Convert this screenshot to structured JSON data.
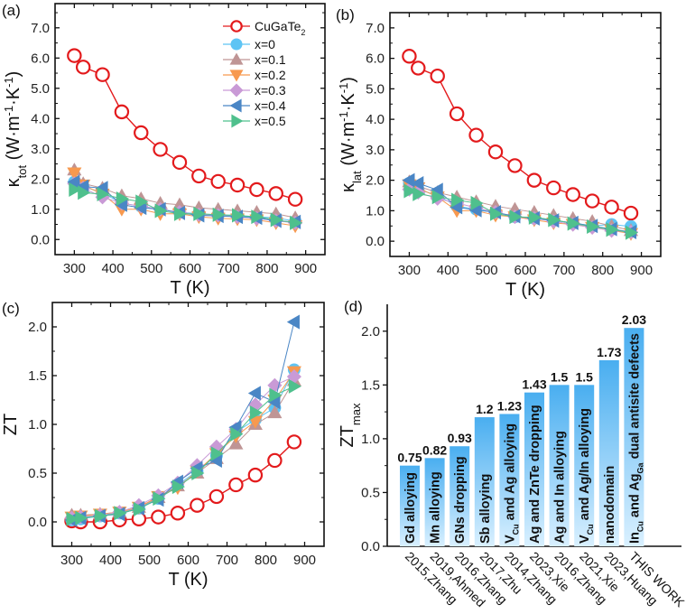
{
  "panel_labels": [
    "(a)",
    "(b)",
    "(c)",
    "(d)"
  ],
  "chart_data": [
    {
      "type": "line",
      "panel": "(a)",
      "xlabel": "T (K)",
      "ylabel": [
        {
          "t": "κ"
        },
        {
          "t": "tot",
          "sub": true
        },
        {
          "t": " (W·m"
        },
        {
          "t": "-1",
          "sup": true
        },
        {
          "t": "·K"
        },
        {
          "t": "-1",
          "sup": true
        },
        {
          "t": ")"
        }
      ],
      "xlim": [
        250,
        950
      ],
      "ylim": [
        -0.5,
        7.8
      ],
      "xticks": [
        300,
        400,
        500,
        600,
        700,
        800,
        900
      ],
      "yticks": [
        "0.0",
        "1.0",
        "2.0",
        "3.0",
        "4.0",
        "5.0",
        "6.0",
        "7.0"
      ],
      "legend_placement": "top-right",
      "x": [
        300,
        323,
        373,
        423,
        473,
        523,
        573,
        623,
        673,
        723,
        773,
        823,
        873
      ],
      "series": [
        {
          "name": [
            {
              "t": "CuGaTe"
            },
            {
              "t": "2",
              "sub": true
            }
          ],
          "marker": "circle-open",
          "color": "#e31a1c",
          "values": [
            6.08,
            5.7,
            5.45,
            4.22,
            3.53,
            2.98,
            2.55,
            2.1,
            1.92,
            1.8,
            1.65,
            1.52,
            1.33
          ]
        },
        {
          "name": "x=0",
          "marker": "circle",
          "color": "#5ec4f4",
          "values": [
            1.9,
            1.75,
            1.55,
            1.2,
            1.1,
            1.0,
            0.9,
            0.85,
            0.8,
            0.78,
            0.75,
            0.72,
            0.6
          ]
        },
        {
          "name": "x=0.1",
          "marker": "triangle-up",
          "color": "#bf9595",
          "values": [
            2.3,
            1.85,
            1.7,
            1.45,
            1.35,
            1.2,
            1.15,
            1.05,
            1.0,
            0.95,
            0.9,
            0.85,
            0.72
          ]
        },
        {
          "name": "x=0.2",
          "marker": "triangle-down",
          "color": "#f7994f",
          "values": [
            2.2,
            1.8,
            1.5,
            1.0,
            1.0,
            0.85,
            0.85,
            0.75,
            0.7,
            0.68,
            0.65,
            0.55,
            0.45
          ]
        },
        {
          "name": "x=0.3",
          "marker": "diamond",
          "color": "#c99ad6",
          "values": [
            1.85,
            1.7,
            1.4,
            1.2,
            1.1,
            1.0,
            0.9,
            0.82,
            0.8,
            0.75,
            0.7,
            0.62,
            0.55
          ]
        },
        {
          "name": "x=0.4",
          "marker": "triangle-left",
          "color": "#4a86c5",
          "values": [
            1.9,
            1.75,
            1.7,
            1.15,
            1.05,
            1.0,
            0.88,
            0.8,
            0.78,
            0.75,
            0.72,
            0.62,
            0.58
          ]
        },
        {
          "name": "x=0.5",
          "marker": "triangle-right",
          "color": "#4fc08d",
          "values": [
            1.65,
            1.55,
            1.5,
            1.35,
            1.25,
            0.95,
            0.85,
            0.85,
            0.82,
            0.8,
            0.75,
            0.65,
            0.55
          ]
        }
      ]
    },
    {
      "type": "line",
      "panel": "(b)",
      "xlabel": "T (K)",
      "ylabel": [
        {
          "t": "κ"
        },
        {
          "t": "lat",
          "sub": true
        },
        {
          "t": " (W·m"
        },
        {
          "t": "-1",
          "sup": true
        },
        {
          "t": "·K"
        },
        {
          "t": "-1",
          "sup": true
        },
        {
          "t": ")"
        }
      ],
      "xlim": [
        250,
        950
      ],
      "ylim": [
        -0.5,
        7.5
      ],
      "xticks": [
        300,
        400,
        500,
        600,
        700,
        800,
        900
      ],
      "yticks": [
        "0.0",
        "1.0",
        "2.0",
        "3.0",
        "4.0",
        "5.0",
        "6.0",
        "7.0"
      ],
      "x": [
        300,
        323,
        373,
        423,
        473,
        523,
        573,
        623,
        673,
        723,
        773,
        823,
        873
      ],
      "series": [
        {
          "marker": "circle-open",
          "color": "#e31a1c",
          "values": [
            6.07,
            5.68,
            5.42,
            4.18,
            3.48,
            2.93,
            2.48,
            2.0,
            1.75,
            1.53,
            1.32,
            1.12,
            0.92
          ]
        },
        {
          "marker": "circle",
          "color": "#5ec4f4",
          "values": [
            1.9,
            1.7,
            1.5,
            1.15,
            1.05,
            0.95,
            0.8,
            0.75,
            0.68,
            0.6,
            0.5,
            0.55,
            0.48
          ]
        },
        {
          "marker": "triangle-up",
          "color": "#bf9595",
          "values": [
            1.95,
            1.8,
            1.6,
            1.45,
            1.3,
            1.15,
            1.05,
            0.95,
            0.85,
            0.75,
            0.65,
            0.5,
            0.35
          ]
        },
        {
          "marker": "triangle-down",
          "color": "#f7994f",
          "values": [
            1.85,
            1.75,
            1.45,
            1.0,
            1.0,
            0.85,
            0.8,
            0.7,
            0.6,
            0.55,
            0.45,
            0.35,
            0.25
          ]
        },
        {
          "marker": "diamond",
          "color": "#c99ad6",
          "values": [
            1.7,
            1.6,
            1.4,
            1.25,
            1.1,
            0.95,
            0.8,
            0.75,
            0.65,
            0.55,
            0.45,
            0.35,
            0.3
          ]
        },
        {
          "marker": "triangle-left",
          "color": "#4a86c5",
          "values": [
            2.0,
            1.9,
            1.68,
            1.12,
            1.02,
            0.95,
            0.82,
            0.75,
            0.68,
            0.6,
            0.5,
            0.4,
            0.3
          ]
        },
        {
          "marker": "triangle-right",
          "color": "#4fc08d",
          "values": [
            1.65,
            1.55,
            1.45,
            1.35,
            1.25,
            0.9,
            0.8,
            0.78,
            0.7,
            0.58,
            0.48,
            0.38,
            0.28
          ]
        }
      ]
    },
    {
      "type": "line",
      "panel": "(c)",
      "xlabel": "T (K)",
      "ylabel": [
        {
          "t": "ZT"
        }
      ],
      "xlim": [
        250,
        950
      ],
      "ylim": [
        -0.25,
        2.25
      ],
      "xticks": [
        300,
        400,
        500,
        600,
        700,
        800,
        900
      ],
      "yticks": [
        "0.0",
        "0.5",
        "1.0",
        "1.5",
        "2.0"
      ],
      "x": [
        300,
        323,
        373,
        423,
        473,
        523,
        573,
        623,
        673,
        723,
        773,
        823,
        873
      ],
      "series": [
        {
          "marker": "circle-open",
          "color": "#e31a1c",
          "values": [
            0.01,
            0.0,
            0.0,
            0.02,
            0.03,
            0.05,
            0.09,
            0.17,
            0.26,
            0.38,
            0.48,
            0.63,
            0.82
          ]
        },
        {
          "marker": "circle",
          "color": "#5ec4f4",
          "values": [
            0.02,
            0.03,
            0.06,
            0.09,
            0.14,
            0.24,
            0.38,
            0.52,
            0.68,
            0.92,
            1.05,
            1.17,
            1.56
          ]
        },
        {
          "marker": "triangle-up",
          "color": "#bf9595",
          "values": [
            0.07,
            0.07,
            0.08,
            0.1,
            0.15,
            0.25,
            0.37,
            0.5,
            0.65,
            0.8,
            1.0,
            1.12,
            1.45
          ]
        },
        {
          "marker": "triangle-down",
          "color": "#f7994f",
          "values": [
            0.05,
            0.06,
            0.08,
            0.1,
            0.15,
            0.26,
            0.35,
            0.52,
            0.7,
            0.88,
            1.03,
            1.25,
            1.54
          ]
        },
        {
          "marker": "diamond",
          "color": "#c99ad6",
          "values": [
            0.04,
            0.05,
            0.07,
            0.1,
            0.17,
            0.27,
            0.4,
            0.58,
            0.77,
            0.95,
            1.2,
            1.4,
            1.49
          ]
        },
        {
          "marker": "triangle-left",
          "color": "#4a86c5",
          "values": [
            0.02,
            0.04,
            0.06,
            0.08,
            0.14,
            0.23,
            0.41,
            0.55,
            0.63,
            0.97,
            1.32,
            1.23,
            2.05
          ]
        },
        {
          "marker": "triangle-right",
          "color": "#4fc08d",
          "values": [
            0.03,
            0.04,
            0.06,
            0.09,
            0.13,
            0.24,
            0.36,
            0.5,
            0.7,
            0.9,
            1.12,
            1.3,
            1.39
          ]
        }
      ]
    },
    {
      "type": "bar",
      "panel": "(d)",
      "ylabel": [
        {
          "t": "ZT"
        },
        {
          "t": "max",
          "sub": true
        }
      ],
      "ylim": [
        0,
        2.25
      ],
      "yticks": [
        "0.0",
        "0.5",
        "1.0",
        "1.5",
        "2.0"
      ],
      "bar_color_top": "#49aef0",
      "bar_color_bottom": "#d9f0ff",
      "categories": [
        "2015,Zhang",
        "2019,Ahmed",
        "2016,Zhang",
        "2017,Zhu",
        "2014,Zhang",
        "2023,Xie",
        "2016,Zhang",
        "2021,Xie",
        "2023,Huang",
        "THIS WORK"
      ],
      "values": [
        0.75,
        0.82,
        0.93,
        1.2,
        1.23,
        1.43,
        1.5,
        1.5,
        1.73,
        2.03
      ],
      "value_labels": [
        "0.75",
        "0.82",
        "0.93",
        "1.2",
        "1.23",
        "1.43",
        "1.5",
        "1.5",
        "1.73",
        "2.03"
      ],
      "bar_labels": [
        [
          {
            "t": "Gd alloying"
          }
        ],
        [
          {
            "t": "Mn alloying"
          }
        ],
        [
          {
            "t": "GNs dropping"
          }
        ],
        [
          {
            "t": "Sb alloying"
          }
        ],
        [
          {
            "t": "V"
          },
          {
            "t": "Cu",
            "sub": true
          },
          {
            "t": " and Ag alloying"
          }
        ],
        [
          {
            "t": "Ag and ZnTe dropping"
          }
        ],
        [
          {
            "t": "Ag and In alloying"
          }
        ],
        [
          {
            "t": "V"
          },
          {
            "t": "Cu",
            "sub": true
          },
          {
            "t": " and Ag/In alloying"
          }
        ],
        [
          {
            "t": "nanodomain"
          }
        ],
        [
          {
            "t": "In"
          },
          {
            "t": "Cu",
            "sub": true
          },
          {
            "t": " and Ag"
          },
          {
            "t": "Ga",
            "sub": true
          },
          {
            "t": " dual antisite defects"
          }
        ]
      ]
    }
  ]
}
